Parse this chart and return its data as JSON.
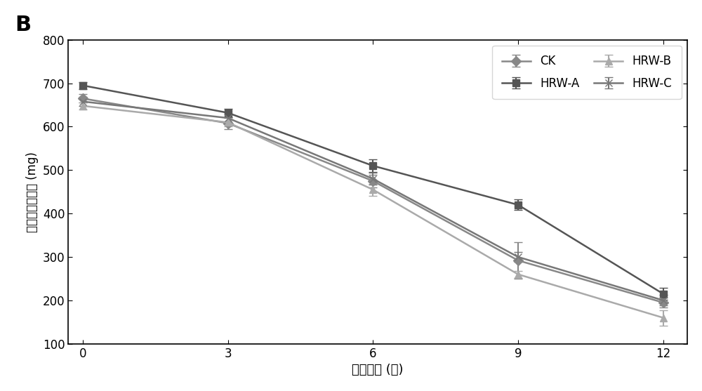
{
  "x": [
    0,
    3,
    6,
    9,
    12
  ],
  "CK": {
    "y": [
      665,
      608,
      475,
      292,
      195
    ],
    "yerr": [
      10,
      14,
      15,
      42,
      12
    ],
    "color": "#888888",
    "marker": "D",
    "label": "CK"
  },
  "HRW_A": {
    "y": [
      695,
      632,
      510,
      420,
      215
    ],
    "yerr": [
      8,
      10,
      14,
      12,
      14
    ],
    "color": "#555555",
    "marker": "s",
    "label": "HRW-A"
  },
  "HRW_B": {
    "y": [
      648,
      610,
      455,
      260,
      160
    ],
    "yerr": [
      8,
      10,
      14,
      8,
      18
    ],
    "color": "#aaaaaa",
    "marker": "^",
    "label": "HRW-B"
  },
  "HRW_C": {
    "y": [
      658,
      620,
      480,
      300,
      200
    ],
    "yerr": [
      10,
      10,
      14,
      12,
      12
    ],
    "color": "#777777",
    "marker": "x",
    "label": "HRW-C"
  },
  "xlabel": "冷藏时间 (天)",
  "ylabel": "子实体菌盖硬度 (mg)",
  "ylim": [
    100,
    800
  ],
  "yticks": [
    100,
    200,
    300,
    400,
    500,
    600,
    700,
    800
  ],
  "xlim": [
    -0.3,
    12.5
  ],
  "xticks": [
    0,
    3,
    6,
    9,
    12
  ],
  "title_letter": "B",
  "bg_color": "#ffffff",
  "plot_bg_color": "#ffffff",
  "border_color": "#bbbbbb"
}
